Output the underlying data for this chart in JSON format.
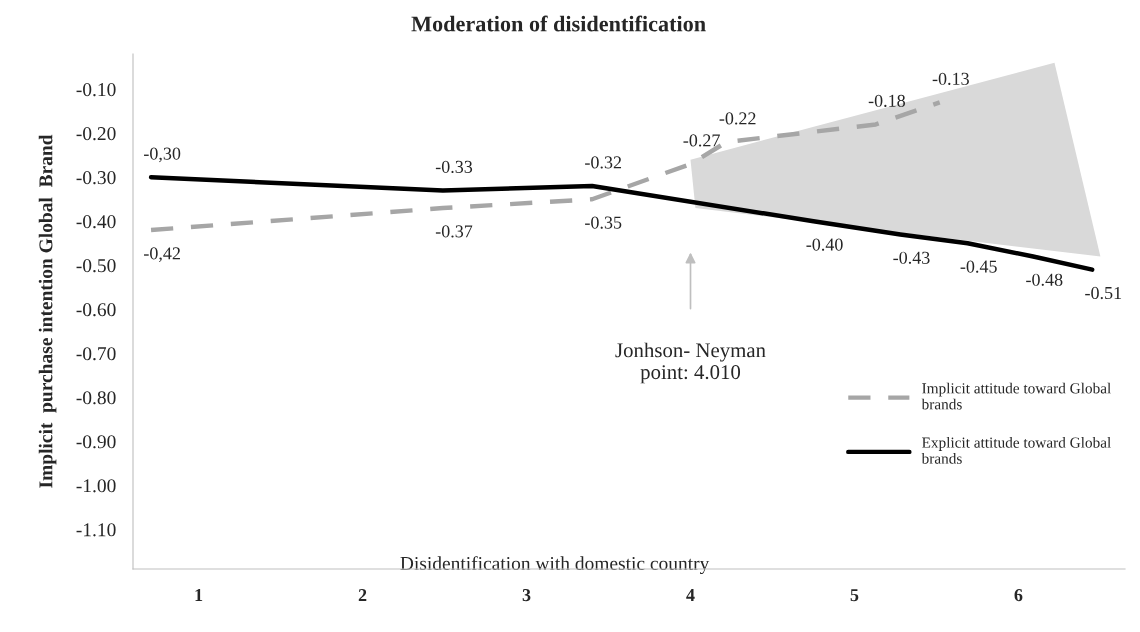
{
  "chart_data": {
    "type": "line",
    "title": "Moderation of disidentification",
    "xlabel": "Disidentification with domestic country",
    "ylabel": "Implicit  purchase intention Global  Brand",
    "xlim": [
      0.6,
      6.65
    ],
    "xticks": [
      1,
      2,
      3,
      4,
      5,
      6
    ],
    "ylim": [
      -1.19,
      -0.02
    ],
    "yticks": [
      {
        "value": -1.1,
        "label": "-1.10"
      },
      {
        "value": -1.0,
        "label": "-1.00"
      },
      {
        "value": -0.9,
        "label": "-0.90"
      },
      {
        "value": -0.8,
        "label": "-0.80"
      },
      {
        "value": -0.7,
        "label": "-0.70"
      },
      {
        "value": -0.6,
        "label": "-0.60"
      },
      {
        "value": -0.5,
        "label": "-0.50"
      },
      {
        "value": -0.4,
        "label": "-0.40"
      },
      {
        "value": -0.3,
        "label": "-0.30"
      },
      {
        "value": -0.2,
        "label": "-0.20"
      },
      {
        "value": -0.1,
        "label": "-0.10"
      }
    ],
    "series": [
      {
        "type": "area",
        "color": "#d9d9d9",
        "x": [
          4.0,
          6.22,
          6.5,
          4.03
        ],
        "values": [
          -0.26,
          -0.04,
          -0.48,
          -0.37
        ]
      },
      {
        "name": "Implicit attitude toward Global brands",
        "color": "#a6a6a6",
        "line_style": "dashed",
        "x": [
          0.71,
          2.49,
          3.4,
          4.0,
          4.22,
          5.13,
          5.52
        ],
        "values": [
          -0.42,
          -0.37,
          -0.35,
          -0.27,
          -0.22,
          -0.18,
          -0.13
        ],
        "value_labels": [
          "-0,42",
          "-0.37",
          "-0.35",
          "-0.27",
          "-0.22",
          "-0.18",
          "-0.13"
        ]
      },
      {
        "name": "Explicit attitude toward Global brands",
        "color": "#000000",
        "line_style": "solid",
        "x": [
          0.71,
          2.49,
          3.4,
          4.75,
          5.28,
          5.69,
          6.09,
          6.45
        ],
        "values": [
          -0.3,
          -0.33,
          -0.32,
          -0.4,
          -0.43,
          -0.45,
          -0.48,
          -0.51
        ],
        "value_labels": [
          "-0,30",
          "-0.33",
          "-0.32",
          "-0.40",
          "-0.43",
          "-0.45",
          "-0.48",
          "-0.51"
        ]
      }
    ],
    "annotations": [
      "Jonhson- Neyman\npoint: 4.010"
    ],
    "legend": "right",
    "grid": false,
    "marker": "none"
  }
}
